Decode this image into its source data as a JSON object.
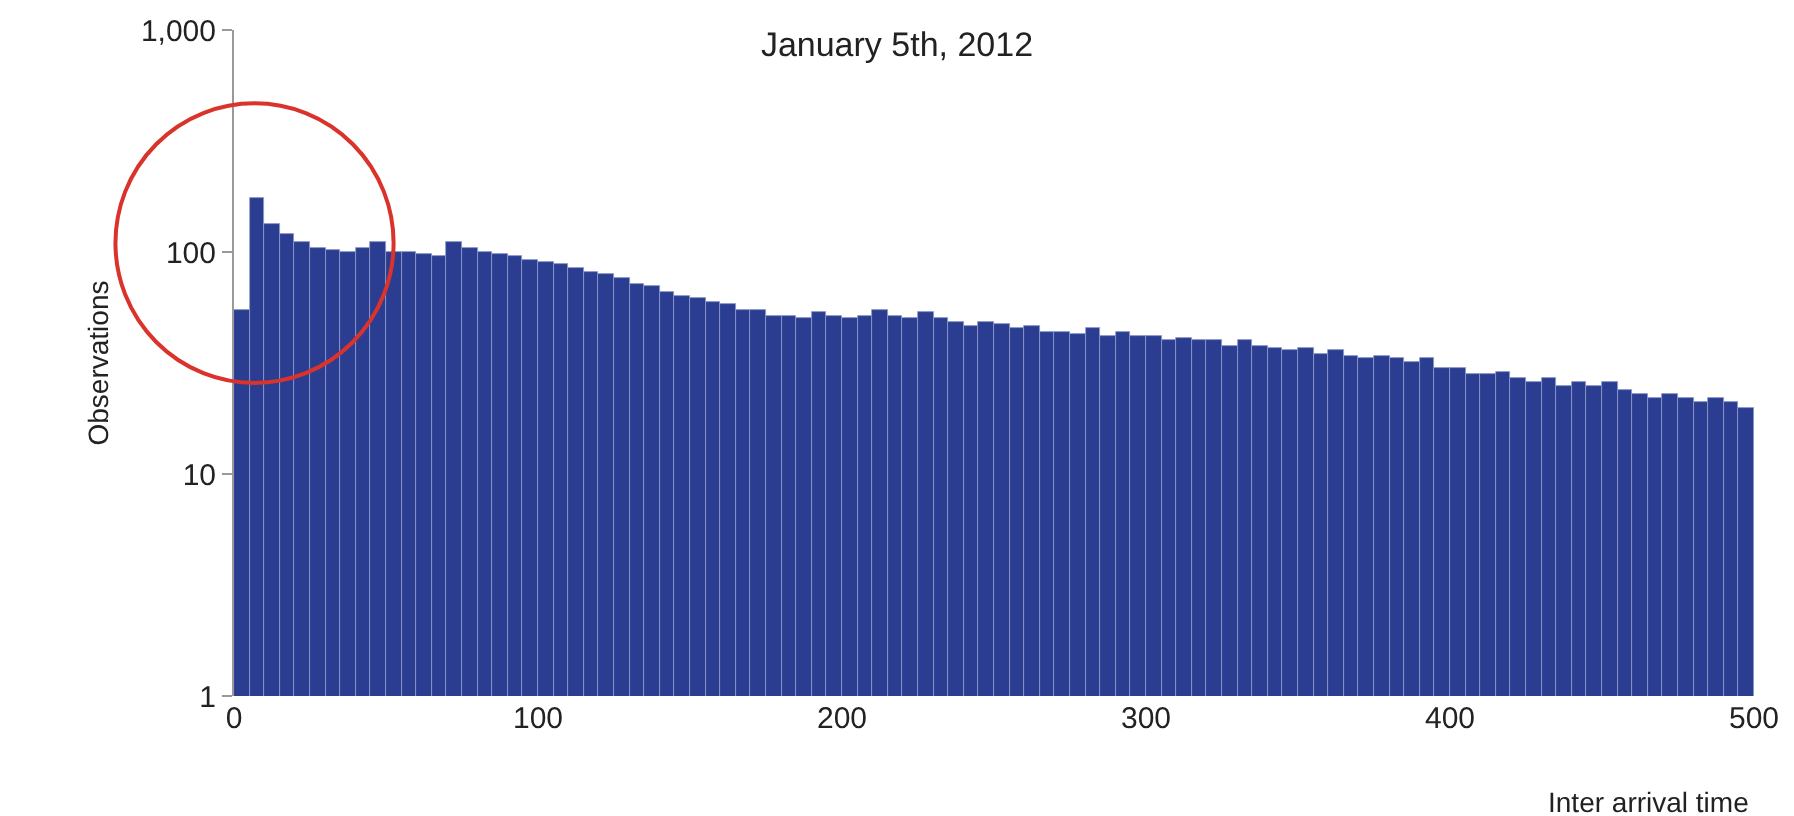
{
  "chart_data": {
    "type": "histogram",
    "title": "January 5th, 2012",
    "xlabel": "Inter arrival time",
    "ylabel": "Observations",
    "color": "#2b3d91",
    "bins": [
      0,
      5,
      10,
      15,
      20,
      25,
      30,
      35,
      40,
      45,
      50,
      55,
      60,
      65,
      70,
      75,
      80,
      85,
      90,
      95,
      100,
      105,
      110,
      115,
      120,
      125,
      130,
      135,
      140,
      145,
      150,
      155,
      160,
      165,
      170,
      175,
      180,
      185,
      190,
      195,
      200,
      205,
      210,
      215,
      220,
      225,
      230,
      235,
      240,
      245,
      250,
      255,
      260,
      265,
      270,
      275,
      280,
      285,
      290,
      295,
      300,
      305,
      310,
      315,
      320,
      325,
      330,
      335,
      340,
      345,
      350,
      355,
      360,
      365,
      370,
      375,
      380,
      385,
      390,
      395,
      400,
      405,
      410,
      415,
      420,
      425,
      430,
      435,
      440,
      445,
      450,
      455,
      460,
      465,
      470,
      475,
      480,
      485,
      490,
      495,
      500
    ],
    "values": [
      55,
      175,
      135,
      120,
      110,
      105,
      102,
      100,
      104,
      112,
      100,
      100,
      98,
      96,
      110,
      105,
      100,
      98,
      95,
      92,
      90,
      88,
      85,
      82,
      80,
      76,
      72,
      70,
      66,
      64,
      62,
      60,
      58,
      55,
      55,
      52,
      52,
      50,
      54,
      52,
      50,
      52,
      55,
      52,
      50,
      54,
      50,
      48,
      46,
      48,
      47,
      45,
      46,
      44,
      44,
      43,
      45,
      42,
      44,
      42,
      42,
      40,
      41,
      40,
      40,
      38,
      40,
      38,
      37,
      36,
      37,
      35,
      36,
      34,
      33,
      34,
      33,
      32,
      33,
      30,
      30,
      28,
      28,
      29,
      27,
      26,
      27,
      25,
      26,
      25,
      26,
      24,
      23,
      22,
      23,
      22,
      21,
      22,
      21,
      20
    ],
    "log": "y",
    "ylim": [
      1,
      1000
    ],
    "yticks": [
      1,
      10,
      100,
      {
        "value": 1000,
        "label": "1,000"
      }
    ],
    "xlim": [
      0,
      500
    ],
    "xticks": [
      0,
      100,
      200,
      300,
      400,
      500
    ],
    "grid": false
  }
}
